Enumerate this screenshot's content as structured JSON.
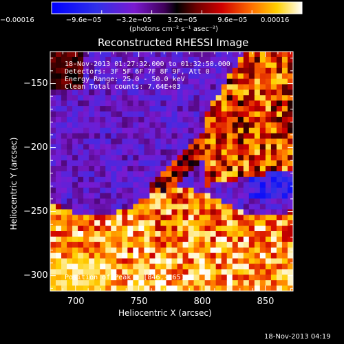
{
  "chart_data": {
    "type": "heatmap",
    "title": "Reconstructed RHESSI Image",
    "xlabel": "Heliocentric X (arcsec)",
    "ylabel": "Heliocentric Y (arcsec)",
    "xlim": [
      680,
      872
    ],
    "ylim": [
      -312,
      -125
    ],
    "x_ticks": [
      700,
      750,
      800,
      850
    ],
    "y_ticks": [
      -150,
      -200,
      -250,
      -300
    ],
    "x_tick_labels": [
      "700",
      "750",
      "800",
      "850"
    ],
    "y_tick_labels": [
      "−150",
      "−200",
      "−250",
      "−300"
    ],
    "colorbar": {
      "min": -0.00016,
      "max": 0.00016,
      "tick_values": [
        -0.00016,
        -9.6e-05,
        -3.2e-05,
        3.2e-05,
        9.6e-05,
        0.00016
      ],
      "tick_labels": [
        "−0.00016",
        "−9.6e−05",
        "−3.2e−05",
        "3.2e−05",
        "9.6e−05",
        "0.00016"
      ],
      "unit_label": "(photons cm⁻² s⁻¹ asec⁻²)",
      "colors": [
        "#0000ff",
        "#2222ee",
        "#6a18c8",
        "#5a0070",
        "#000000",
        "#7a0000",
        "#d40000",
        "#ff6a00",
        "#ffc800",
        "#ffffff"
      ]
    },
    "info_lines": [
      "18-Nov-2013 01:27:32.000 to 01:32:50.000",
      "Detectors: 3F 5F 6F 7F 8F 9F, Att 0",
      "Energy Range: 25.0 - 50.0 keV",
      "Clean    Total counts: 7.64E+03"
    ],
    "peak_label": "Position of Peak = [846,-265]",
    "peak": {
      "x": 846,
      "y": -265
    },
    "grid": false,
    "legend": "none"
  },
  "footer": {
    "timestamp": "18-Nov-2013 04:19"
  }
}
